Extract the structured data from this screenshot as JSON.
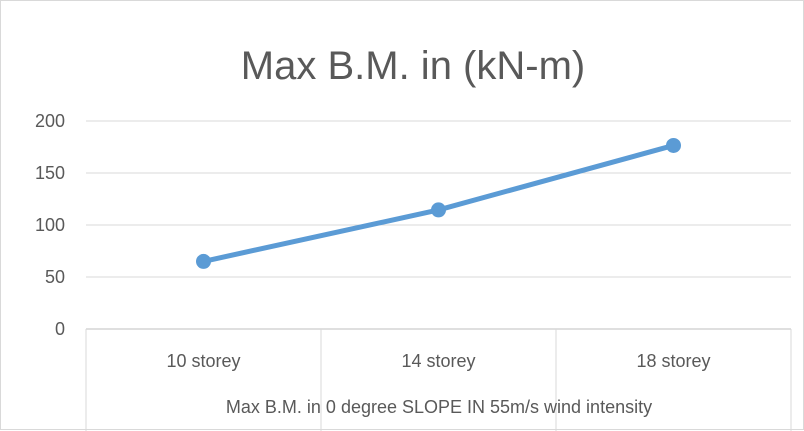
{
  "chart_data": {
    "type": "line",
    "title": "Max B.M. in (kN-m)",
    "xlabel": "Max B.M. in 0 degree SLOPE IN 55m/s wind intensity",
    "ylabel": "",
    "categories": [
      "10 storey",
      "14 storey",
      "18 storey"
    ],
    "series": [
      {
        "values": [
          65,
          114.5,
          176.5
        ],
        "color": "#5B9BD5"
      }
    ],
    "ylim": [
      0,
      200
    ],
    "yticks": [
      0,
      50,
      100,
      150,
      200
    ],
    "grid": true,
    "legend": "none"
  }
}
